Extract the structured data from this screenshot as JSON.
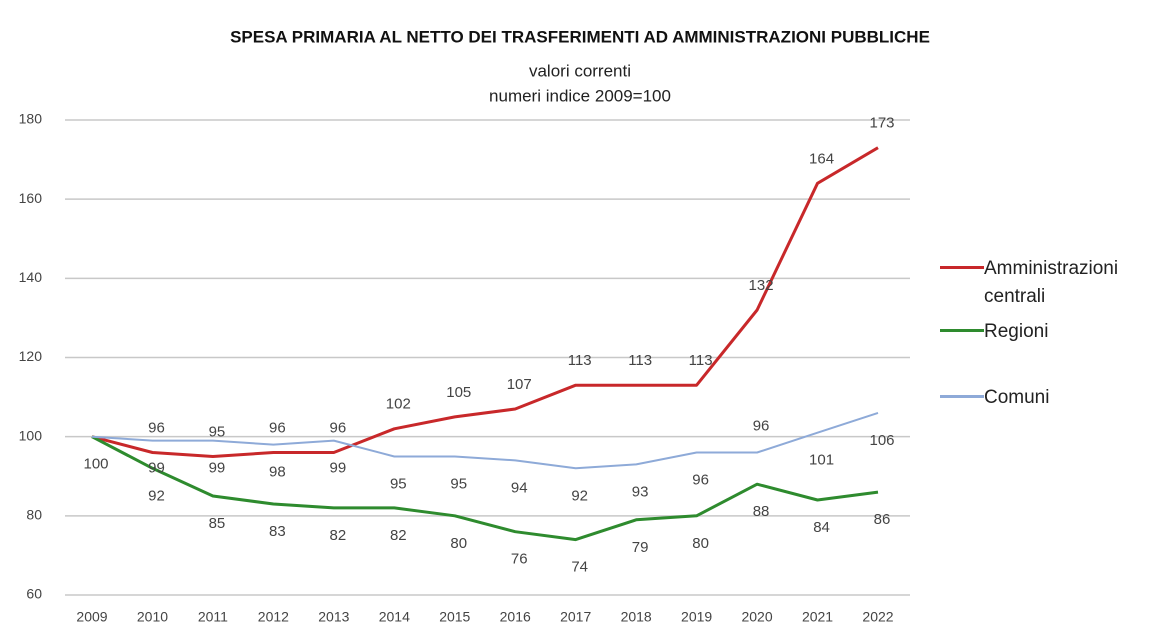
{
  "chart_data": {
    "type": "line",
    "title": "SPESA PRIMARIA AL NETTO DEI TRASFERIMENTI AD AMMINISTRAZIONI PUBBLICHE",
    "subtitle": [
      "valori  correnti",
      "numeri indice 2009=100"
    ],
    "categories": [
      "2009",
      "2010",
      "2011",
      "2012",
      "2013",
      "2014",
      "2015",
      "2016",
      "2017",
      "2018",
      "2019",
      "2020",
      "2021",
      "2022"
    ],
    "series": [
      {
        "name": "Amministrazioni centrali",
        "color": "#c8282a",
        "values": [
          100,
          96,
          95,
          96,
          96,
          102,
          105,
          107,
          113,
          113,
          113,
          132,
          164,
          173
        ]
      },
      {
        "name": "Regioni",
        "color": "#2e8b2e",
        "values": [
          100,
          92,
          85,
          83,
          82,
          82,
          80,
          76,
          74,
          79,
          80,
          88,
          84,
          86
        ]
      },
      {
        "name": "Comuni",
        "color": "#8eaad8",
        "values": [
          100,
          99,
          99,
          98,
          99,
          95,
          95,
          94,
          92,
          93,
          96,
          96,
          101,
          106
        ]
      }
    ],
    "ylim": [
      60,
      180
    ],
    "yticks": [
      60,
      80,
      100,
      120,
      140,
      160,
      180
    ],
    "grid": true,
    "legend": "right"
  }
}
